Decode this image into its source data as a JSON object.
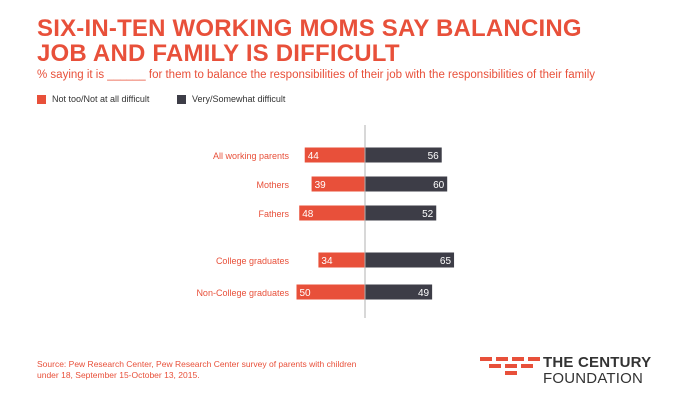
{
  "title": "SIX-IN-TEN WORKING MOMS SAY BALANCING JOB AND FAMILY IS DIFFICULT",
  "subtitle": "% saying it is ______ for them to balance the responsibilities of their job with the responsibilities of their family",
  "legend": [
    {
      "label": "Not too/Not at all difficult",
      "color": "#e8503a"
    },
    {
      "label": "Very/Somewhat difficult",
      "color": "#3d3d47"
    }
  ],
  "source": "Source: Pew Research Center, Pew Research Center survey of parents with children under 18, September 15-October 13, 2015.",
  "logo": {
    "line1": "THE CENTURY",
    "line2": "FOUNDATION"
  },
  "chart_data": {
    "type": "bar",
    "orientation": "horizontal-diverging",
    "categories": [
      "All working parents",
      "Mothers",
      "Fathers",
      "College graduates",
      "Non-College graduates"
    ],
    "series": [
      {
        "name": "Not too/Not at all difficult",
        "values": [
          44,
          39,
          48,
          34,
          50
        ],
        "color": "#e8503a"
      },
      {
        "name": "Very/Somewhat difficult",
        "values": [
          56,
          60,
          52,
          65,
          49
        ],
        "color": "#3d3d47"
      }
    ],
    "grid": false
  }
}
